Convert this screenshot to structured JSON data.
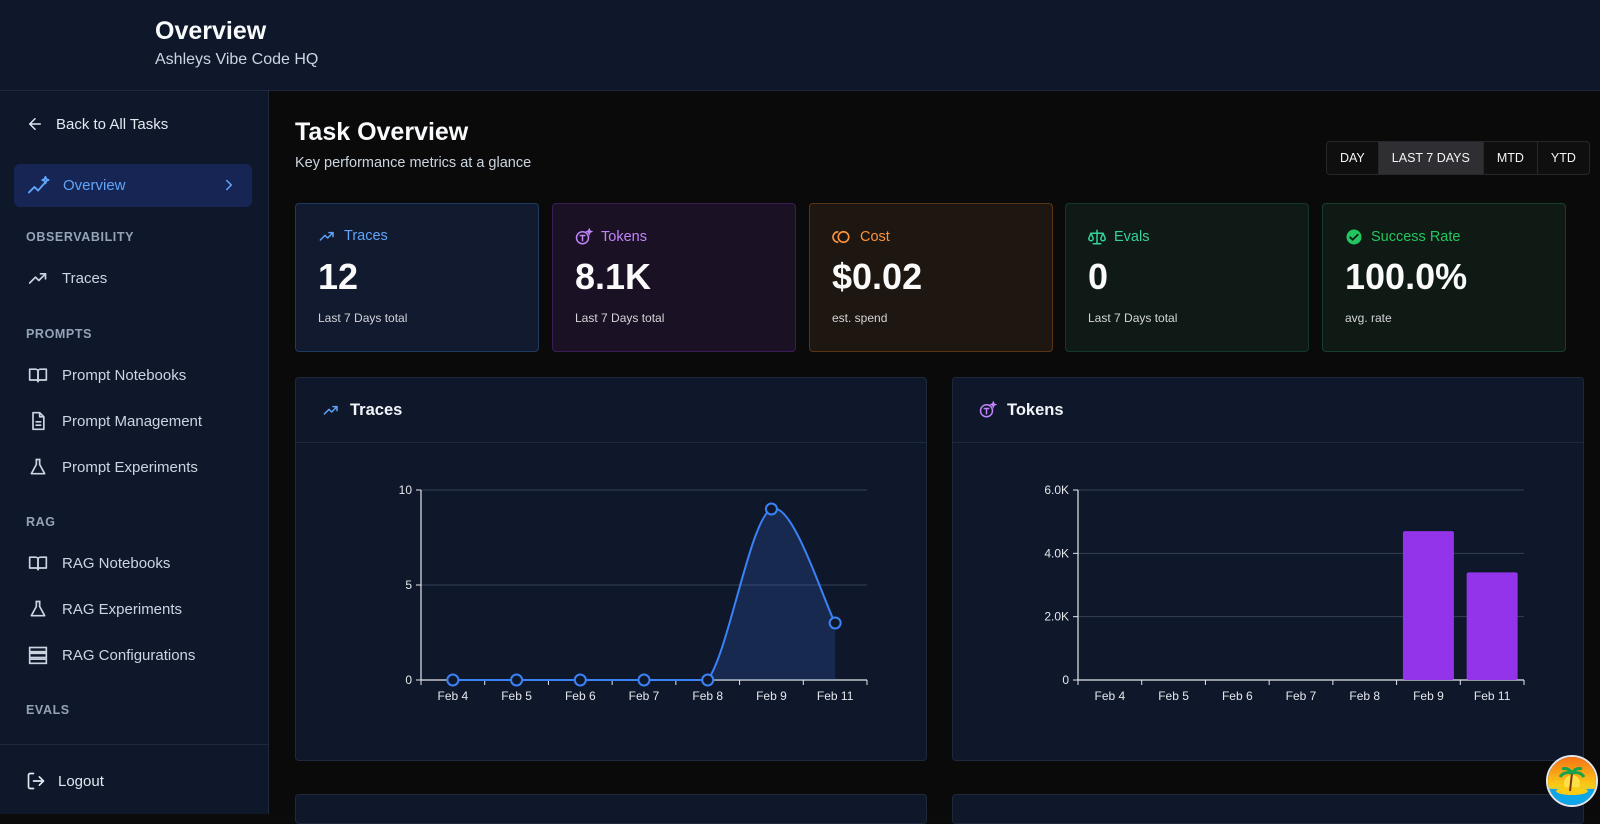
{
  "header": {
    "title": "Overview",
    "subtitle": "Ashleys Vibe Code HQ"
  },
  "sidebar": {
    "back_label": "Back to All Tasks",
    "active": {
      "label": "Overview"
    },
    "sections": {
      "observability": {
        "label": "OBSERVABILITY",
        "items": [
          "Traces"
        ]
      },
      "prompts": {
        "label": "PROMPTS",
        "items": [
          "Prompt Notebooks",
          "Prompt Management",
          "Prompt Experiments"
        ]
      },
      "rag": {
        "label": "RAG",
        "items": [
          "RAG Notebooks",
          "RAG Experiments",
          "RAG Configurations"
        ]
      },
      "evals": {
        "label": "EVALS"
      }
    },
    "logout_label": "Logout"
  },
  "main": {
    "title": "Task Overview",
    "subtitle": "Key performance metrics at a glance",
    "ranges": [
      "DAY",
      "LAST 7 DAYS",
      "MTD",
      "YTD"
    ],
    "active_range": "LAST 7 DAYS",
    "cards": [
      {
        "label": "Traces",
        "value": "12",
        "note": "Last 7 Days total",
        "color": "#60a5fa"
      },
      {
        "label": "Tokens",
        "value": "8.1K",
        "note": "Last 7 Days total",
        "color": "#c084fc"
      },
      {
        "label": "Cost",
        "value": "$0.02",
        "note": "est. spend",
        "color": "#fb923c"
      },
      {
        "label": "Evals",
        "value": "0",
        "note": "Last 7 Days total",
        "color": "#34d399"
      },
      {
        "label": "Success Rate",
        "value": "100.0%",
        "note": "avg. rate",
        "color": "#22c55e"
      }
    ],
    "panels": {
      "traces_title": "Traces",
      "tokens_title": "Tokens"
    }
  },
  "chart_data": [
    {
      "type": "line",
      "title": "Traces",
      "categories": [
        "Feb 4",
        "Feb 5",
        "Feb 6",
        "Feb 7",
        "Feb 8",
        "Feb 9",
        "Feb 11"
      ],
      "values": [
        0,
        0,
        0,
        0,
        0,
        9,
        3
      ],
      "ylim": [
        0,
        10
      ],
      "yticks": [
        0,
        5,
        10
      ],
      "ytick_labels": [
        "0",
        "5",
        "10"
      ],
      "color": "#3b82f6"
    },
    {
      "type": "bar",
      "title": "Tokens",
      "categories": [
        "Feb 4",
        "Feb 5",
        "Feb 6",
        "Feb 7",
        "Feb 8",
        "Feb 9",
        "Feb 11"
      ],
      "values": [
        0,
        0,
        0,
        0,
        0,
        4700,
        3400
      ],
      "ylim": [
        0,
        6000
      ],
      "yticks": [
        0,
        2000,
        4000,
        6000
      ],
      "ytick_labels": [
        "0",
        "2.0K",
        "4.0K",
        "6.0K"
      ],
      "color": "#9333ea"
    }
  ]
}
